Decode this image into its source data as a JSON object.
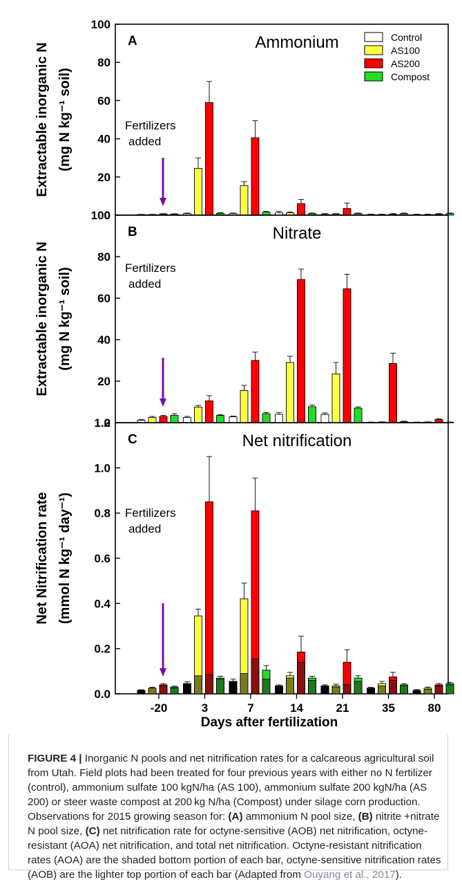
{
  "colors": {
    "control": "#ffffff",
    "as100": "#ffff44",
    "as200": "#ff0000",
    "compost": "#22dd22",
    "arrow": "#7a0f9a",
    "bg": "#ffffff"
  },
  "x_axis": {
    "label": "Days after fertilization",
    "ticks": [
      "-20",
      "3",
      "7",
      "14",
      "21",
      "35",
      "80"
    ]
  },
  "annotation": {
    "line1": "Fertilizers",
    "line2": "added"
  },
  "chart_data": [
    {
      "type": "bar",
      "panel": "A",
      "title": "Ammonium",
      "ylabel_line1": "Extractable inorganic N",
      "ylabel_line2": "(mg N kg⁻¹ soil)",
      "ylim": [
        0,
        100
      ],
      "yticks": [
        "0",
        "20",
        "40",
        "60",
        "80",
        "100"
      ],
      "legend": [
        "Control",
        "AS100",
        "AS200",
        "Compost"
      ],
      "legend_position": "top-right",
      "categories": [
        "-20",
        "3",
        "7",
        "14",
        "21",
        "35",
        "80"
      ],
      "series": [
        {
          "name": "Control",
          "values": [
            0.3,
            0.8,
            0.8,
            1.2,
            0.5,
            0.3,
            0.3
          ],
          "err": [
            0.1,
            0.3,
            0.3,
            0.8,
            0.3,
            0.2,
            0.2
          ]
        },
        {
          "name": "AS100",
          "values": [
            0.3,
            24.5,
            15.5,
            1.2,
            0.5,
            0.3,
            0.3
          ],
          "err": [
            0.1,
            5.5,
            2.0,
            0.5,
            0.3,
            0.2,
            0.2
          ]
        },
        {
          "name": "AS200",
          "values": [
            0.6,
            59,
            40.5,
            6,
            3.5,
            0.5,
            0.5
          ],
          "err": [
            0.2,
            11,
            9,
            2.2,
            2.8,
            0.3,
            0.3
          ]
        },
        {
          "name": "Compost",
          "values": [
            0.5,
            1,
            1.5,
            0.8,
            0.8,
            0.8,
            0.8
          ],
          "err": [
            0.2,
            0.3,
            0.5,
            0.3,
            0.3,
            0.3,
            0.3
          ]
        }
      ]
    },
    {
      "type": "bar",
      "panel": "B",
      "title": "Nitrate",
      "ylabel_line1": "Extractable inorganic N",
      "ylabel_line2": "(mg N kg⁻¹ soil)",
      "ylim": [
        0,
        100
      ],
      "yticks": [
        "0",
        "20",
        "40",
        "60",
        "80",
        "100"
      ],
      "categories": [
        "-20",
        "3",
        "7",
        "14",
        "21",
        "35",
        "80"
      ],
      "series": [
        {
          "name": "Control",
          "values": [
            1.2,
            2.5,
            2.8,
            4,
            4,
            0.2,
            0.2
          ],
          "err": [
            0.3,
            0.5,
            0.4,
            0.8,
            0.7,
            0.1,
            0.1
          ]
        },
        {
          "name": "AS100",
          "values": [
            2.5,
            7.5,
            15.5,
            29,
            23.5,
            0.3,
            0.3
          ],
          "err": [
            0.5,
            0.8,
            2.5,
            3,
            5.5,
            0.1,
            0.1
          ]
        },
        {
          "name": "AS200",
          "values": [
            3,
            10.5,
            30,
            69,
            64.5,
            28.5,
            1.5
          ],
          "err": [
            0.5,
            2.5,
            4,
            5,
            7,
            5,
            0.4
          ]
        },
        {
          "name": "Compost",
          "values": [
            3.5,
            3.5,
            4.3,
            7.7,
            7,
            0.5,
            0.2
          ],
          "err": [
            0.8,
            0.4,
            0.6,
            0.8,
            0.6,
            0.2,
            0.1
          ]
        }
      ]
    },
    {
      "type": "bar",
      "panel": "C",
      "title": "Net nitrification",
      "ylabel_line1": "Net Nitrification rate",
      "ylabel_line2": "(mmol N kg⁻¹ day⁻¹)",
      "ylim": [
        0,
        1.2
      ],
      "yticks": [
        "0.0",
        "0.2",
        "0.4",
        "0.6",
        "0.8",
        "1.0",
        "1.2"
      ],
      "categories": [
        "-20",
        "3",
        "7",
        "14",
        "21",
        "35",
        "80"
      ],
      "series": [
        {
          "name": "Control",
          "total": [
            0.015,
            0.045,
            0.055,
            0.035,
            0.035,
            0.025,
            0.015
          ],
          "aoa": [
            0.015,
            0.045,
            0.055,
            0.035,
            0.035,
            0.025,
            0.015
          ],
          "err": [
            0.003,
            0.008,
            0.01,
            0.005,
            0.005,
            0.004,
            0.004
          ]
        },
        {
          "name": "AS100",
          "total": [
            0.025,
            0.345,
            0.42,
            0.08,
            0.035,
            0.045,
            0.025
          ],
          "aoa": [
            0.025,
            0.08,
            0.09,
            0.07,
            0.03,
            0.035,
            0.02
          ],
          "err": [
            0.004,
            0.03,
            0.07,
            0.015,
            0.008,
            0.01,
            0.005
          ]
        },
        {
          "name": "AS200",
          "total": [
            0.04,
            0.85,
            0.81,
            0.185,
            0.14,
            0.075,
            0.04
          ],
          "aoa": [
            0.035,
            0.085,
            0.155,
            0.14,
            0.04,
            0.06,
            0.035
          ],
          "err": [
            0.005,
            0.2,
            0.145,
            0.07,
            0.055,
            0.02,
            0.006
          ]
        },
        {
          "name": "Compost",
          "total": [
            0.03,
            0.07,
            0.105,
            0.07,
            0.07,
            0.04,
            0.045
          ],
          "aoa": [
            0.025,
            0.065,
            0.065,
            0.06,
            0.055,
            0.035,
            0.04
          ],
          "err": [
            0.004,
            0.008,
            0.02,
            0.008,
            0.01,
            0.005,
            0.006
          ]
        }
      ]
    }
  ],
  "caption": {
    "label": "FIGURE 4 |",
    "p1": " Inorganic N pools and net nitrification rates for a calcareous agricultural soil from Utah. Field plots had been treated for four previous years with either no N fertilizer (control), ammonium sulfate 100 kgN/ha (AS 100), ammonium sulfate 200 kgN/ha (AS 200) or steer waste compost at 200 kg N/ha (Compost) under silage corn production. Observations for 2015 growing season for: ",
    "a": "(A)",
    "p2": " ammonium N pool size, ",
    "b": "(B)",
    "p3": " nitrite +nitrate N pool size, ",
    "c": "(C)",
    "p4": " net nitrification rate for octyne-sensitive (AOB) net nitrification, octyne-resistant (AOA) net nitrification, and total net nitrification. Octyne-resistant nitrification rates (AOA) are the shaded bottom portion of each bar, octyne-sensitive nitrification rates (AOB) are the lighter top portion of each bar (Adapted from ",
    "ref": "Ouyang et al., 2017",
    "p5": ")."
  }
}
